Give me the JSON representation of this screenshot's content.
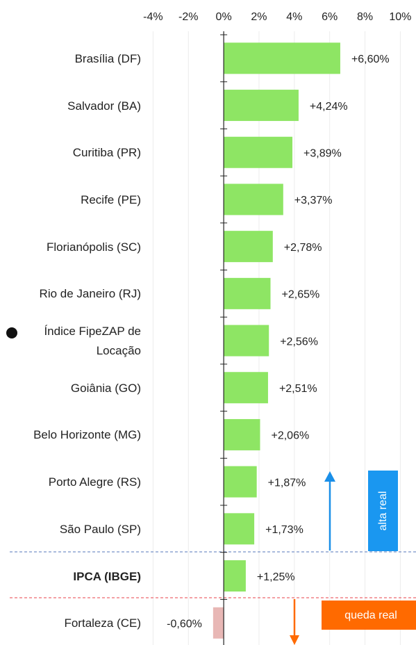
{
  "chart_data": {
    "type": "bar",
    "orientation": "horizontal",
    "categories": [
      "Brasília (DF)",
      "Salvador (BA)",
      "Curitiba (PR)",
      "Recife (PE)",
      "Florianópolis (SC)",
      "Rio de Janeiro (RJ)",
      "Índice FipeZAP de\nLocação",
      "Goiânia (GO)",
      "Belo Horizonte (MG)",
      "Porto Alegre (RS)",
      "São Paulo (SP)",
      "IPCA (IBGE)",
      "Fortaleza (CE)"
    ],
    "values": [
      6.6,
      4.24,
      3.89,
      3.37,
      2.78,
      2.65,
      2.56,
      2.51,
      2.06,
      1.87,
      1.73,
      1.25,
      -0.6
    ],
    "value_labels": [
      "+6,60%",
      "+4,24%",
      "+3,89%",
      "+3,37%",
      "+2,78%",
      "+2,65%",
      "+2,56%",
      "+2,51%",
      "+2,06%",
      "+1,87%",
      "+1,73%",
      "+1,25%",
      "-0,60%"
    ],
    "positive_color": "#8ee564",
    "negative_color": "#e8b7b5",
    "xlim": [
      -4,
      10
    ],
    "xticks": [
      {
        "value": -4,
        "label": "-4%"
      },
      {
        "value": -2,
        "label": "-2%"
      },
      {
        "value": 0,
        "label": "0%"
      },
      {
        "value": 2,
        "label": "2%"
      },
      {
        "value": 4,
        "label": "4%"
      },
      {
        "value": 6,
        "label": "6%"
      },
      {
        "value": 8,
        "label": "8%"
      },
      {
        "value": 10,
        "label": "10%"
      }
    ],
    "grid": true,
    "annotations": {
      "up": "alta real",
      "down": "queda real"
    }
  }
}
